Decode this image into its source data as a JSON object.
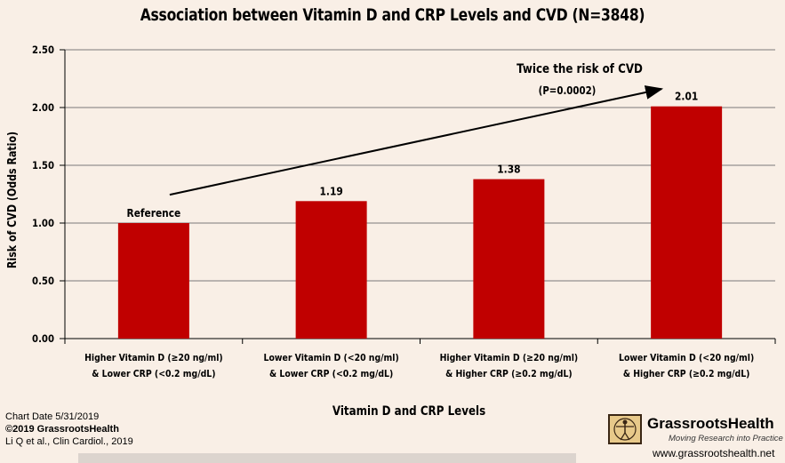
{
  "chart_data": {
    "type": "bar",
    "title": "Association between Vitamin D and CRP Levels and CVD (N=3848)",
    "xlabel": "Vitamin D and CRP Levels",
    "ylabel": "Risk of CVD (Odds Ratio)",
    "ylim": [
      0,
      2.5
    ],
    "yticks": [
      "0.00",
      "0.50",
      "1.00",
      "1.50",
      "2.00",
      "2.50"
    ],
    "ytick_values": [
      0,
      0.5,
      1.0,
      1.5,
      2.0,
      2.5
    ],
    "grid": true,
    "bar_color": "#c00000",
    "categories": [
      [
        "Higher Vitamin D (≥20 ng/ml)",
        "& Lower CRP (<0.2 mg/dL)"
      ],
      [
        "Lower Vitamin D (<20 ng/ml)",
        "& Lower CRP (<0.2 mg/dL)"
      ],
      [
        "Higher Vitamin D (≥20 ng/ml)",
        "& Higher CRP (≥0.2 mg/dL)"
      ],
      [
        "Lower Vitamin D (<20 ng/ml)",
        "& Higher CRP (≥0.2 mg/dL)"
      ]
    ],
    "values": [
      1.0,
      1.19,
      1.38,
      2.01
    ],
    "data_labels": [
      "Reference",
      "1.19",
      "1.38",
      "2.01"
    ],
    "annotation": {
      "text": "Twice the risk of CVD",
      "subtext": "(P=0.0002)",
      "arrow": {
        "from_category": 0,
        "from_value": 1.23,
        "to_category": 3,
        "to_value": 2.13
      }
    }
  },
  "footer": {
    "chart_date": "Chart Date 5/31/2019",
    "copyright": "©2019 GrassrootsHealth",
    "citation": "Li Q et al., Clin Cardiol., 2019",
    "brand": "GrassrootsHealth",
    "tagline": "Moving Research into Practice",
    "website": "www.grassrootshealth.net"
  }
}
